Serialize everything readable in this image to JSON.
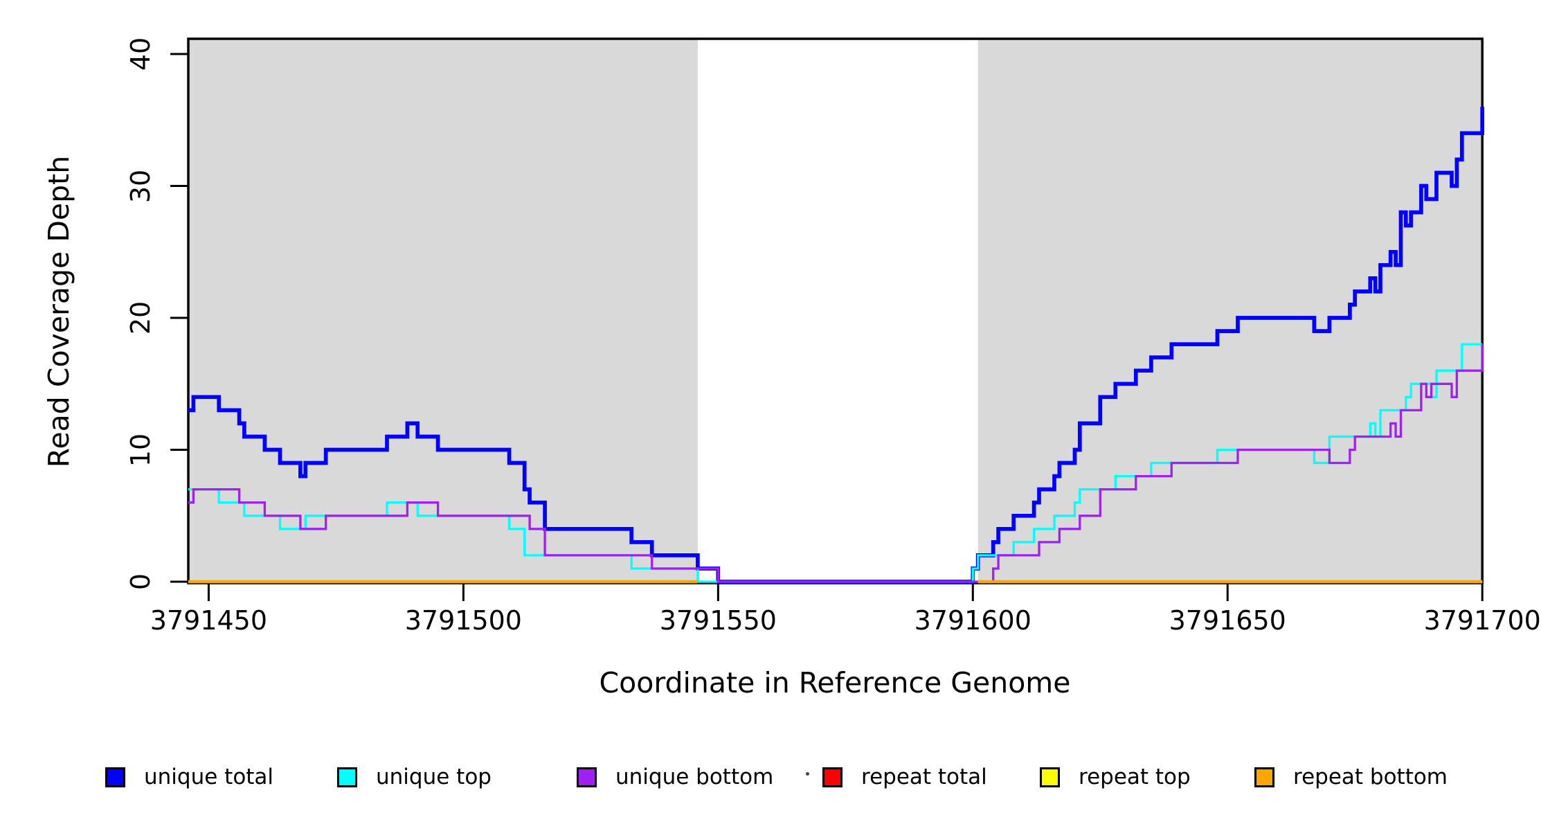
{
  "figure": {
    "xlabel": "Coordinate in Reference Genome",
    "ylabel": "Read Coverage Depth",
    "background_color": "#ffffff",
    "shade_color": "#d9d9d9"
  },
  "chart_data": {
    "type": "line",
    "subtype": "step",
    "title": "",
    "xlabel": "Coordinate in Reference Genome",
    "ylabel": "Read Coverage Depth",
    "xlim": [
      3791446,
      3791700
    ],
    "ylim": [
      0,
      40
    ],
    "xticks": [
      3791450,
      3791500,
      3791550,
      3791600,
      3791650,
      3791700
    ],
    "xticklabels": [
      "3791450",
      "3791500",
      "3791550",
      "3791600",
      "3791650",
      "3791700"
    ],
    "yticks": [
      0,
      10,
      20,
      30,
      40
    ],
    "yticklabels": [
      "0",
      "10",
      "20",
      "30",
      "40"
    ],
    "grid": false,
    "legend_position": "bottom",
    "shade_color": "#d9d9d9",
    "shaded_regions": [
      {
        "from": 3791446,
        "to": 3791546
      },
      {
        "from": 3791601,
        "to": 3791700
      }
    ],
    "series": [
      {
        "name": "unique total",
        "color": "#0000ff",
        "width": 5.7,
        "segments": [
          [
            3791446,
            3791447,
            13
          ],
          [
            3791447,
            3791452,
            14
          ],
          [
            3791452,
            3791456,
            13
          ],
          [
            3791456,
            3791457,
            12
          ],
          [
            3791457,
            3791461,
            11
          ],
          [
            3791461,
            3791464,
            10
          ],
          [
            3791464,
            3791468,
            9
          ],
          [
            3791468,
            3791469,
            8
          ],
          [
            3791469,
            3791473,
            9
          ],
          [
            3791473,
            3791485,
            10
          ],
          [
            3791485,
            3791489,
            11
          ],
          [
            3791489,
            3791491,
            12
          ],
          [
            3791491,
            3791495,
            11
          ],
          [
            3791495,
            3791509,
            10
          ],
          [
            3791509,
            3791512,
            9
          ],
          [
            3791512,
            3791513,
            7
          ],
          [
            3791513,
            3791516,
            6
          ],
          [
            3791516,
            3791533,
            4
          ],
          [
            3791533,
            3791537,
            3
          ],
          [
            3791537,
            3791546,
            2
          ],
          [
            3791546,
            3791550,
            1
          ],
          [
            3791550,
            3791600,
            0
          ],
          [
            3791600,
            3791601,
            1
          ],
          [
            3791601,
            3791604,
            2
          ],
          [
            3791604,
            3791605,
            3
          ],
          [
            3791605,
            3791608,
            4
          ],
          [
            3791608,
            3791612,
            5
          ],
          [
            3791612,
            3791613,
            6
          ],
          [
            3791613,
            3791616,
            7
          ],
          [
            3791616,
            3791617,
            8
          ],
          [
            3791617,
            3791620,
            9
          ],
          [
            3791620,
            3791621,
            10
          ],
          [
            3791621,
            3791625,
            12
          ],
          [
            3791625,
            3791628,
            14
          ],
          [
            3791628,
            3791632,
            15
          ],
          [
            3791632,
            3791635,
            16
          ],
          [
            3791635,
            3791639,
            17
          ],
          [
            3791639,
            3791648,
            18
          ],
          [
            3791648,
            3791652,
            19
          ],
          [
            3791652,
            3791667,
            20
          ],
          [
            3791667,
            3791670,
            19
          ],
          [
            3791670,
            3791674,
            20
          ],
          [
            3791674,
            3791675,
            21
          ],
          [
            3791675,
            3791678,
            22
          ],
          [
            3791678,
            3791679,
            23
          ],
          [
            3791679,
            3791680,
            22
          ],
          [
            3791680,
            3791682,
            24
          ],
          [
            3791682,
            3791683,
            25
          ],
          [
            3791683,
            3791684,
            24
          ],
          [
            3791684,
            3791685,
            28
          ],
          [
            3791685,
            3791686,
            27
          ],
          [
            3791686,
            3791688,
            28
          ],
          [
            3791688,
            3791689,
            30
          ],
          [
            3791689,
            3791691,
            29
          ],
          [
            3791691,
            3791694,
            31
          ],
          [
            3791694,
            3791695,
            30
          ],
          [
            3791695,
            3791696,
            32
          ],
          [
            3791696,
            3791700,
            34
          ],
          [
            3791700,
            3791700,
            36
          ]
        ]
      },
      {
        "name": "unique top",
        "color": "#00ffff",
        "width": 3.3,
        "segments": [
          [
            3791446,
            3791452,
            7
          ],
          [
            3791452,
            3791457,
            6
          ],
          [
            3791457,
            3791464,
            5
          ],
          [
            3791464,
            3791469,
            4
          ],
          [
            3791469,
            3791485,
            5
          ],
          [
            3791485,
            3791491,
            6
          ],
          [
            3791491,
            3791509,
            5
          ],
          [
            3791509,
            3791512,
            4
          ],
          [
            3791512,
            3791533,
            2
          ],
          [
            3791533,
            3791546,
            1
          ],
          [
            3791546,
            3791600,
            0
          ],
          [
            3791600,
            3791601,
            1
          ],
          [
            3791601,
            3791608,
            2
          ],
          [
            3791608,
            3791612,
            3
          ],
          [
            3791612,
            3791616,
            4
          ],
          [
            3791616,
            3791620,
            5
          ],
          [
            3791620,
            3791621,
            6
          ],
          [
            3791621,
            3791628,
            7
          ],
          [
            3791628,
            3791635,
            8
          ],
          [
            3791635,
            3791648,
            9
          ],
          [
            3791648,
            3791667,
            10
          ],
          [
            3791667,
            3791670,
            9
          ],
          [
            3791670,
            3791678,
            11
          ],
          [
            3791678,
            3791679,
            12
          ],
          [
            3791679,
            3791680,
            11
          ],
          [
            3791680,
            3791685,
            13
          ],
          [
            3791685,
            3791686,
            14
          ],
          [
            3791686,
            3791690,
            15
          ],
          [
            3791690,
            3791691,
            14
          ],
          [
            3791691,
            3791696,
            16
          ],
          [
            3791696,
            3791700,
            18
          ]
        ]
      },
      {
        "name": "unique bottom",
        "color": "#a020f0",
        "width": 3.3,
        "segments": [
          [
            3791446,
            3791447,
            6
          ],
          [
            3791447,
            3791456,
            7
          ],
          [
            3791456,
            3791461,
            6
          ],
          [
            3791461,
            3791468,
            5
          ],
          [
            3791468,
            3791473,
            4
          ],
          [
            3791473,
            3791489,
            5
          ],
          [
            3791489,
            3791495,
            6
          ],
          [
            3791495,
            3791513,
            5
          ],
          [
            3791513,
            3791516,
            4
          ],
          [
            3791516,
            3791537,
            2
          ],
          [
            3791537,
            3791550,
            1
          ],
          [
            3791550,
            3791604,
            0
          ],
          [
            3791604,
            3791605,
            1
          ],
          [
            3791605,
            3791613,
            2
          ],
          [
            3791613,
            3791617,
            3
          ],
          [
            3791617,
            3791621,
            4
          ],
          [
            3791621,
            3791625,
            5
          ],
          [
            3791625,
            3791632,
            7
          ],
          [
            3791632,
            3791639,
            8
          ],
          [
            3791639,
            3791652,
            9
          ],
          [
            3791652,
            3791670,
            10
          ],
          [
            3791670,
            3791674,
            9
          ],
          [
            3791674,
            3791675,
            10
          ],
          [
            3791675,
            3791682,
            11
          ],
          [
            3791682,
            3791683,
            12
          ],
          [
            3791683,
            3791684,
            11
          ],
          [
            3791684,
            3791688,
            13
          ],
          [
            3791688,
            3791689,
            15
          ],
          [
            3791689,
            3791690,
            14
          ],
          [
            3791690,
            3791694,
            15
          ],
          [
            3791694,
            3791695,
            14
          ],
          [
            3791695,
            3791700,
            16
          ],
          [
            3791700,
            3791700,
            18
          ]
        ]
      },
      {
        "name": "repeat total",
        "color": "#ff0000",
        "width": 3.3,
        "segments": [
          [
            3791446,
            3791546,
            0
          ],
          [
            3791601,
            3791700,
            0
          ]
        ]
      },
      {
        "name": "repeat top",
        "color": "#ffff00",
        "width": 3.3,
        "segments": [
          [
            3791446,
            3791546,
            0
          ],
          [
            3791601,
            3791700,
            0
          ]
        ]
      },
      {
        "name": "repeat bottom",
        "color": "#ffa500",
        "width": 4.6,
        "segments": [
          [
            3791446,
            3791546,
            0
          ],
          [
            3791601,
            3791700,
            0
          ]
        ]
      }
    ]
  }
}
